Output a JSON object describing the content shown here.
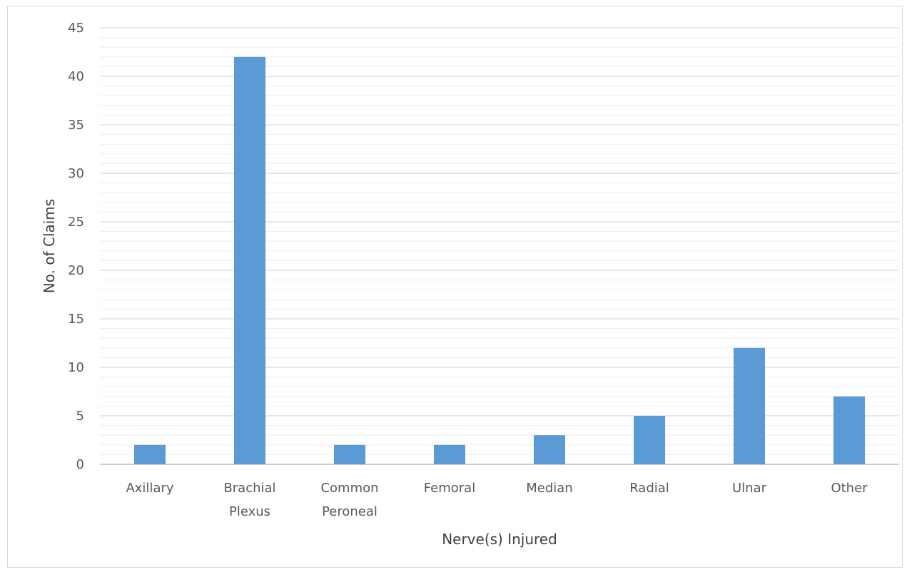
{
  "chart_data": {
    "type": "bar",
    "categories": [
      [
        "Axillary"
      ],
      [
        "Brachial",
        "Plexus"
      ],
      [
        "Common",
        "Peroneal"
      ],
      [
        "Femoral"
      ],
      [
        "Median"
      ],
      [
        "Radial"
      ],
      [
        "Ulnar"
      ],
      [
        "Other"
      ]
    ],
    "values": [
      2,
      42,
      2,
      2,
      3,
      5,
      12,
      7
    ],
    "xlabel": "Nerve(s) Injured",
    "ylabel": "No. of Claims",
    "ylim": [
      0,
      45
    ],
    "yticks": [
      0,
      5,
      10,
      15,
      20,
      25,
      30,
      35,
      40,
      45
    ],
    "minor_grid_step": 1,
    "grid": true,
    "legend": "none",
    "colors": {
      "bar": "#5b9bd5",
      "major_grid": "#d9d9d9",
      "minor_grid": "#eeeeee",
      "axis": "#bfbfbf"
    }
  }
}
